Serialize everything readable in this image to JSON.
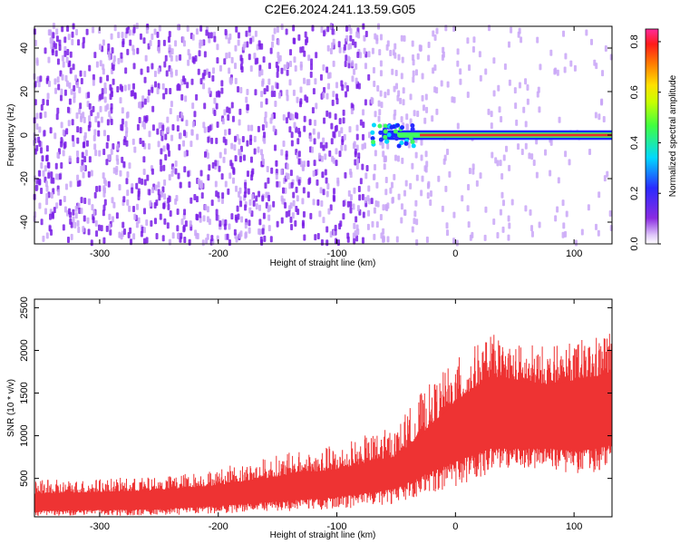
{
  "figure": {
    "title": "C2E6.2024.241.13.59.G05"
  },
  "chart_data": [
    {
      "type": "heatmap",
      "title": "C2E6.2024.241.13.59.G05",
      "xlabel": "Height of straight line (km)",
      "ylabel": "Frequency (Hz)",
      "xlim": [
        -355,
        132
      ],
      "ylim": [
        -50,
        50
      ],
      "x_ticks": [
        -300,
        -200,
        -100,
        0,
        100
      ],
      "y_ticks": [
        -40,
        -20,
        0,
        20,
        40
      ],
      "colorbar": {
        "label": "Normalized spectral amplitude",
        "range": [
          0.0,
          0.85
        ],
        "ticks": [
          0.0,
          0.2,
          0.4,
          0.6,
          0.8
        ],
        "colormap": "rainbow (white-purple-blue-cyan-green-yellow-red)"
      },
      "features": [
        {
          "description": "scattered low-amplitude noise across all frequencies, dense purple",
          "x_range": [
            -355,
            -70
          ],
          "amplitude": 0.05
        },
        {
          "description": "noise thinning out toward right",
          "x_range": [
            -70,
            132
          ],
          "amplitude": 0.02
        },
        {
          "description": "strong carrier line near 0 Hz",
          "x_range": [
            -70,
            132
          ],
          "frequency": 0,
          "amplitude_peak": 0.85
        }
      ],
      "colors": {
        "noise": "#7a1fe6",
        "light_noise": "#c9a6f7",
        "carrier_peak": "#e6302e"
      }
    },
    {
      "type": "area",
      "xlabel": "Height of straight line (km)",
      "ylabel": "SNR (10 * v/v)",
      "xlim": [
        -355,
        132
      ],
      "ylim": [
        50,
        2600
      ],
      "x_ticks": [
        -300,
        -200,
        -100,
        0,
        100
      ],
      "y_ticks": [
        500,
        1000,
        1500,
        2000,
        2500
      ],
      "color": "#ee3333",
      "envelope_x": [
        -355,
        -300,
        -250,
        -200,
        -150,
        -100,
        -50,
        -30,
        0,
        30,
        50,
        80,
        100,
        120,
        132
      ],
      "envelope_upper": [
        480,
        500,
        520,
        620,
        780,
        900,
        1120,
        1500,
        1900,
        2200,
        2100,
        2050,
        2100,
        2200,
        2300
      ],
      "envelope_lower": [
        60,
        60,
        65,
        80,
        110,
        140,
        200,
        300,
        400,
        550,
        600,
        600,
        550,
        580,
        650
      ],
      "band_upper": [
        320,
        340,
        360,
        420,
        520,
        600,
        760,
        1000,
        1400,
        1700,
        1650,
        1600,
        1650,
        1700,
        1750
      ],
      "band_lower": [
        120,
        130,
        140,
        180,
        230,
        280,
        380,
        520,
        700,
        850,
        850,
        850,
        820,
        850,
        900
      ]
    }
  ]
}
